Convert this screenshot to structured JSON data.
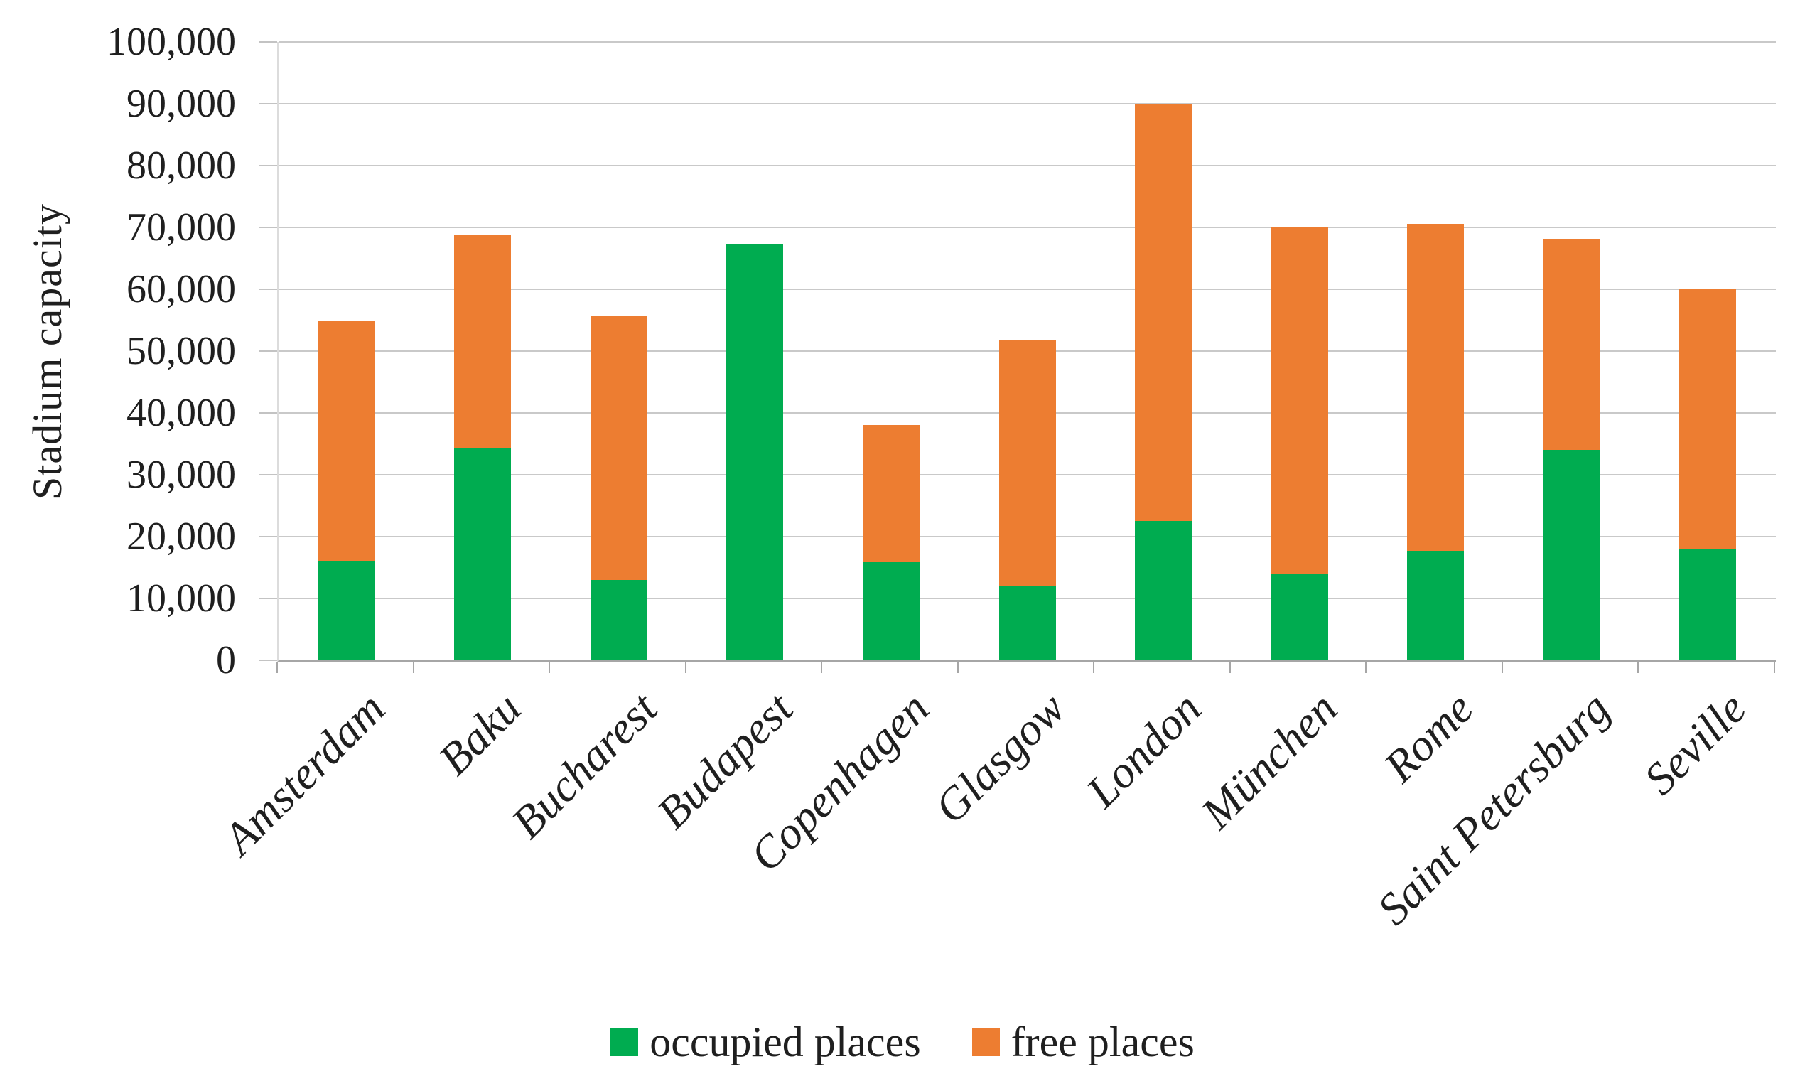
{
  "chart_data": {
    "type": "bar",
    "stacked": true,
    "ylabel": "Stadium capacity",
    "xlabel": "",
    "categories": [
      "Amsterdam",
      "Baku",
      "Bucharest",
      "Budapest",
      "Copenhagen",
      "Glasgow",
      "London",
      "München",
      "Rome",
      "Saint Petersburg",
      "Seville"
    ],
    "series": [
      {
        "name": "occupied places",
        "color": "#00AC50",
        "values": [
          16000,
          34350,
          13000,
          67215,
          15900,
          12000,
          22500,
          14000,
          17659,
          34067,
          18000
        ]
      },
      {
        "name": "free places",
        "color": "#ED7D31",
        "values": [
          38990,
          34350,
          42600,
          0,
          22165,
          39866,
          67500,
          56000,
          52975,
          34067,
          42000
        ]
      }
    ],
    "bar_totals": [
      54990,
      68700,
      55600,
      67215,
      38065,
      51866,
      90000,
      70000,
      70634,
      68134,
      60000
    ],
    "ylim": [
      0,
      100000
    ],
    "ytick_step": 10000,
    "ytick_labels": [
      "100,000",
      "90,000",
      "80,000",
      "70,000",
      "60,000",
      "50,000",
      "40,000",
      "30,000",
      "20,000",
      "10,000",
      "0"
    ],
    "grid": true,
    "legend_position": "bottom"
  },
  "colors": {
    "gridline": "#c9c9c9",
    "axis_line": "#a6a6a6",
    "text": "#1f1f1f"
  }
}
